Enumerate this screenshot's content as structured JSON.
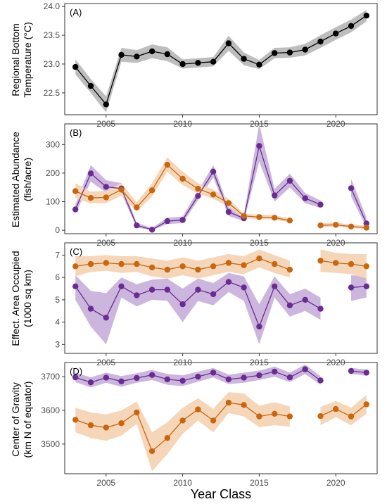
{
  "colors": {
    "black": "#000000",
    "purple": "#6a2c91",
    "orange": "#c8670f",
    "band_black": "#bdbdbd",
    "band_purple": "#ccb6dd",
    "band_orange": "#f5d6b8"
  },
  "x_axis": {
    "label": "Year Class",
    "ticks": [
      2005,
      2010,
      2015,
      2020
    ],
    "xlim": [
      2002.3,
      2022.7
    ]
  },
  "chart_data": [
    {
      "type": "line",
      "panel_label": "(A)",
      "ylabel": [
        "Regional Bottom",
        "Temperature (°C)"
      ],
      "ylim": [
        22.12,
        24.05
      ],
      "yticks": [
        22.5,
        23.0,
        23.5,
        24.0
      ],
      "ytick_labels": [
        "22.5",
        "23.0",
        "23.5",
        "24.0"
      ],
      "series": [
        {
          "color_key": "black",
          "x": [
            2003,
            2004,
            2005,
            2006,
            2007,
            2008,
            2009,
            2010,
            2011,
            2012,
            2013,
            2014,
            2015,
            2016,
            2017,
            2018,
            2019,
            2020,
            2021,
            2022
          ],
          "y": [
            22.95,
            22.62,
            22.3,
            23.16,
            23.13,
            23.22,
            23.17,
            23.0,
            23.02,
            23.04,
            23.36,
            23.09,
            22.99,
            23.19,
            23.2,
            23.25,
            23.39,
            23.53,
            23.66,
            23.84
          ],
          "lower": [
            22.82,
            22.5,
            22.16,
            23.04,
            23.02,
            23.1,
            23.05,
            22.92,
            22.94,
            22.96,
            23.23,
            22.98,
            22.91,
            23.1,
            23.11,
            23.15,
            23.28,
            23.42,
            23.55,
            23.74
          ],
          "upper": [
            23.08,
            22.74,
            22.44,
            23.28,
            23.24,
            23.34,
            23.29,
            23.08,
            23.1,
            23.12,
            23.49,
            23.2,
            23.07,
            23.28,
            23.29,
            23.35,
            23.5,
            23.64,
            23.77,
            23.94
          ]
        }
      ]
    },
    {
      "type": "line",
      "panel_label": "(B)",
      "ylabel": [
        "Estimated Abundance",
        "(fish/acre)"
      ],
      "ylim": [
        -12,
        372
      ],
      "yticks": [
        0,
        100,
        200,
        300
      ],
      "ytick_labels": [
        "0",
        "100",
        "200",
        "300"
      ],
      "series": [
        {
          "color_key": "purple",
          "x": [
            2003,
            2004,
            2005,
            2006,
            2007,
            2008,
            2009,
            2010,
            2011,
            2012,
            2013,
            2014,
            2015,
            2016,
            2017,
            2018,
            2019,
            null,
            2021,
            2022
          ],
          "y": [
            73,
            199,
            152,
            146,
            17,
            2,
            32,
            36,
            120,
            205,
            64,
            42,
            295,
            122,
            173,
            112,
            90,
            null,
            147,
            24
          ],
          "lower": [
            58,
            170,
            132,
            128,
            10,
            0,
            22,
            25,
            105,
            185,
            50,
            32,
            240,
            100,
            150,
            95,
            78,
            null,
            118,
            10
          ],
          "upper": [
            90,
            228,
            175,
            165,
            26,
            8,
            44,
            48,
            138,
            228,
            80,
            55,
            372,
            145,
            198,
            130,
            104,
            null,
            180,
            45
          ]
        },
        {
          "color_key": "orange",
          "x": [
            2003,
            2004,
            2005,
            2006,
            2007,
            2008,
            2009,
            2010,
            2011,
            2012,
            2013,
            2014,
            2015,
            2016,
            2017,
            null,
            2019,
            2020,
            2021,
            2022
          ],
          "y": [
            137,
            113,
            115,
            142,
            80,
            140,
            229,
            180,
            145,
            125,
            95,
            50,
            46,
            44,
            34,
            null,
            17,
            19,
            13,
            9
          ],
          "lower": [
            112,
            94,
            95,
            122,
            65,
            118,
            205,
            158,
            128,
            110,
            82,
            42,
            39,
            37,
            28,
            null,
            11,
            13,
            8,
            4
          ],
          "upper": [
            165,
            135,
            138,
            165,
            98,
            165,
            255,
            205,
            165,
            142,
            110,
            58,
            55,
            52,
            42,
            null,
            25,
            27,
            20,
            16
          ]
        }
      ]
    },
    {
      "type": "line",
      "panel_label": "(C)",
      "ylabel": [
        "Effect. Area Occupied",
        "(1000 sq km)"
      ],
      "ylim": [
        2.6,
        7.55
      ],
      "yticks": [
        3,
        4,
        5,
        6,
        7
      ],
      "ytick_labels": [
        "3",
        "4",
        "5",
        "6",
        "7"
      ],
      "series": [
        {
          "color_key": "purple",
          "x": [
            2003,
            2004,
            2005,
            2006,
            2007,
            2008,
            2009,
            2010,
            2011,
            2012,
            2013,
            2014,
            2015,
            2016,
            2017,
            2018,
            2019,
            null,
            2021,
            2022
          ],
          "y": [
            5.6,
            4.6,
            4.2,
            5.6,
            5.2,
            5.45,
            5.45,
            4.8,
            5.45,
            5.25,
            5.8,
            5.55,
            3.8,
            5.6,
            4.75,
            5.0,
            4.6,
            null,
            5.55,
            5.6
          ],
          "lower": [
            5.0,
            3.8,
            3.0,
            5.1,
            4.7,
            5.0,
            4.95,
            4.0,
            4.95,
            4.75,
            5.35,
            4.95,
            3.0,
            5.1,
            4.25,
            4.5,
            4.1,
            null,
            4.95,
            5.1
          ],
          "upper": [
            6.1,
            5.4,
            5.3,
            6.0,
            5.7,
            5.9,
            5.95,
            5.5,
            5.95,
            5.75,
            6.2,
            6.05,
            4.8,
            6.05,
            5.25,
            5.5,
            5.1,
            null,
            6.1,
            6.05
          ]
        },
        {
          "color_key": "orange",
          "x": [
            2003,
            2004,
            2005,
            2006,
            2007,
            2008,
            2009,
            2010,
            2011,
            2012,
            2013,
            2014,
            2015,
            2016,
            2017,
            null,
            2019,
            2020,
            2021,
            2022
          ],
          "y": [
            6.5,
            6.6,
            6.65,
            6.6,
            6.6,
            6.45,
            6.35,
            6.5,
            6.35,
            6.5,
            6.65,
            6.55,
            6.85,
            6.6,
            6.35,
            null,
            6.75,
            6.65,
            6.6,
            6.5
          ],
          "lower": [
            6.05,
            6.25,
            6.3,
            6.2,
            6.25,
            6.05,
            5.95,
            6.1,
            5.95,
            6.1,
            6.25,
            6.15,
            6.45,
            6.2,
            6.0,
            null,
            6.25,
            6.2,
            6.15,
            5.95
          ],
          "upper": [
            6.95,
            6.95,
            7.0,
            6.95,
            6.95,
            6.85,
            6.75,
            6.9,
            6.75,
            6.9,
            7.05,
            6.95,
            7.25,
            7.0,
            6.75,
            null,
            7.25,
            7.1,
            7.05,
            7.05
          ]
        }
      ]
    },
    {
      "type": "line",
      "panel_label": "(D)",
      "ylabel": [
        "Center of Gravity",
        "(km N of equator)"
      ],
      "ylim": [
        3412,
        3742
      ],
      "yticks": [
        3500,
        3600,
        3700
      ],
      "ytick_labels": [
        "3500",
        "3600",
        "3700"
      ],
      "series": [
        {
          "color_key": "purple",
          "x": [
            2003,
            2004,
            2005,
            2006,
            2007,
            2008,
            2009,
            2010,
            2011,
            2012,
            2013,
            2014,
            2015,
            2016,
            2017,
            2018,
            2019,
            null,
            2021,
            2022
          ],
          "y": [
            3698,
            3683,
            3697,
            3686,
            3696,
            3705,
            3692,
            3688,
            3700,
            3712,
            3692,
            3697,
            3704,
            3715,
            3698,
            3722,
            3689,
            null,
            3717,
            3712
          ],
          "lower": [
            3684,
            3668,
            3682,
            3670,
            3682,
            3690,
            3676,
            3672,
            3685,
            3698,
            3678,
            3682,
            3690,
            3700,
            3684,
            3708,
            3676,
            null,
            3708,
            3703
          ],
          "upper": [
            3712,
            3698,
            3712,
            3702,
            3710,
            3720,
            3708,
            3704,
            3715,
            3726,
            3706,
            3712,
            3718,
            3730,
            3712,
            3736,
            3702,
            null,
            3726,
            3721
          ]
        },
        {
          "color_key": "orange",
          "x": [
            2003,
            2004,
            2005,
            2006,
            2007,
            2008,
            2009,
            2010,
            2011,
            2012,
            2013,
            2014,
            2015,
            2016,
            2017,
            null,
            2019,
            2020,
            2021,
            2022
          ],
          "y": [
            3572,
            3556,
            3549,
            3562,
            3594,
            3479,
            3518,
            3570,
            3603,
            3570,
            3623,
            3616,
            3582,
            3590,
            3582,
            null,
            3583,
            3604,
            3582,
            3618
          ],
          "lower": [
            3535,
            3518,
            3510,
            3525,
            3560,
            3420,
            3470,
            3530,
            3570,
            3535,
            3592,
            3582,
            3550,
            3556,
            3552,
            null,
            3556,
            3580,
            3556,
            3590
          ],
          "upper": [
            3608,
            3594,
            3588,
            3600,
            3626,
            3535,
            3565,
            3608,
            3636,
            3605,
            3654,
            3650,
            3614,
            3624,
            3612,
            null,
            3610,
            3628,
            3608,
            3646
          ]
        }
      ]
    }
  ]
}
